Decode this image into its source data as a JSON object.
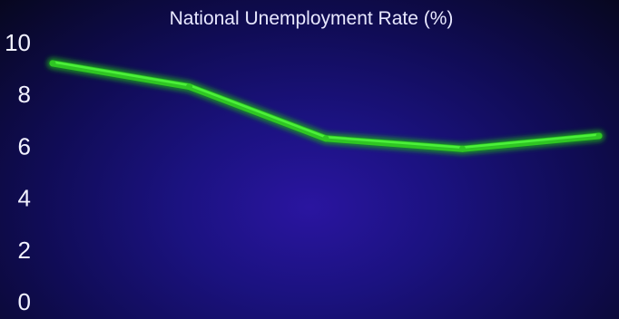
{
  "chart_data": {
    "type": "line",
    "title": "National Unemployment Rate (%)",
    "xlabel": "",
    "ylabel": "",
    "ylim": [
      0,
      10
    ],
    "y_ticks": [
      "0",
      "2",
      "4",
      "6",
      "8",
      "10"
    ],
    "x": [
      1,
      2,
      3,
      4,
      5
    ],
    "series": [
      {
        "values": [
          9.2,
          8.3,
          6.3,
          5.9,
          6.4
        ]
      }
    ],
    "grid": false,
    "legend": "none",
    "colors": {
      "line": "#4cf03a",
      "line_glow": "#1fa81a",
      "tick_labels": "#f2f2ff",
      "title": "#e8e8ff"
    }
  }
}
